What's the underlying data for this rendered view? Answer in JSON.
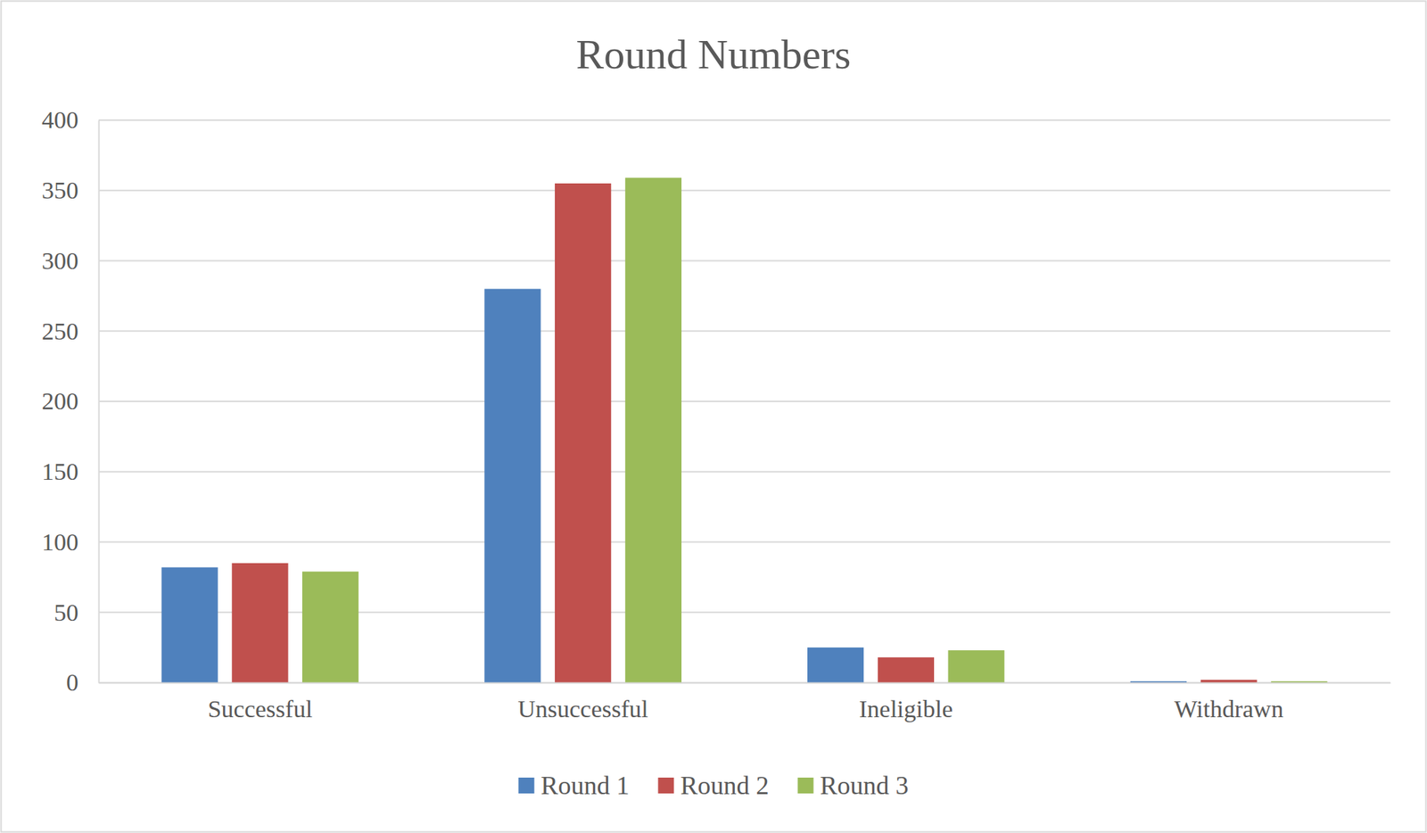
{
  "chart_data": {
    "type": "bar",
    "title": "Round Numbers",
    "categories": [
      "Successful",
      "Unsuccessful",
      "Ineligible",
      "Withdrawn"
    ],
    "series": [
      {
        "name": "Round 1",
        "color": "#4f81bd",
        "values": [
          82,
          280,
          25,
          1
        ]
      },
      {
        "name": "Round 2",
        "color": "#c0504d",
        "values": [
          85,
          355,
          18,
          2
        ]
      },
      {
        "name": "Round 3",
        "color": "#9bbb59",
        "values": [
          79,
          359,
          23,
          1
        ]
      }
    ],
    "ylim": [
      0,
      400
    ],
    "yticks": [
      0,
      50,
      100,
      150,
      200,
      250,
      300,
      350,
      400
    ],
    "grid": true,
    "legend": "bottom"
  }
}
